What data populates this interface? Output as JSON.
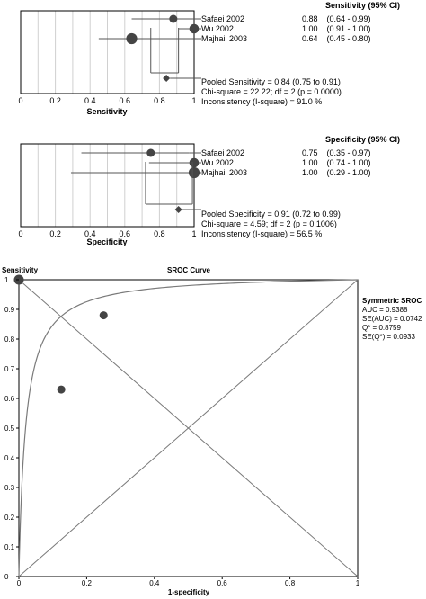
{
  "chart_data": [
    {
      "type": "forest",
      "header": "Sensitivity (95% CI)",
      "xlabel": "Sensitivity",
      "xlim": [
        0,
        1
      ],
      "x_ticks": [
        "0",
        "0.2",
        "0.4",
        "0.6",
        "0.8",
        "1"
      ],
      "studies": [
        {
          "name": "Safaei  2002",
          "est": 0.88,
          "lo": 0.64,
          "hi": 0.99,
          "ci_text": "0.88    (0.64 - 0.99)"
        },
        {
          "name": "Wu  2002",
          "est": 1.0,
          "lo": 0.91,
          "hi": 1.0,
          "ci_text": "1.00    (0.91 - 1.00)"
        },
        {
          "name": "Majhail  2003",
          "est": 0.64,
          "lo": 0.45,
          "hi": 0.8,
          "ci_text": "0.64    (0.45 - 0.80)"
        }
      ],
      "pooled": {
        "est": 0.84,
        "lo": 0.75,
        "hi": 0.91
      },
      "stats": [
        "Pooled Sensitivity = 0.84 (0.75 to 0.91)",
        "Chi-square = 22.22; df =  2 (p = 0.0000)",
        "Inconsistency (I-square) = 91.0 %"
      ]
    },
    {
      "type": "forest",
      "header": "Specificity (95% CI)",
      "xlabel": "Specificity",
      "xlim": [
        0,
        1
      ],
      "x_ticks": [
        "0",
        "0.2",
        "0.4",
        "0.6",
        "0.8",
        "1"
      ],
      "studies": [
        {
          "name": "Safaei  2002",
          "est": 0.75,
          "lo": 0.35,
          "hi": 0.97,
          "ci_text": "0.75    (0.35 - 0.97)"
        },
        {
          "name": "Wu  2002",
          "est": 1.0,
          "lo": 0.74,
          "hi": 1.0,
          "ci_text": "1.00    (0.74 - 1.00)"
        },
        {
          "name": "Majhail  2003",
          "est": 1.0,
          "lo": 0.29,
          "hi": 1.0,
          "ci_text": "1.00    (0.29 - 1.00)"
        }
      ],
      "pooled": {
        "est": 0.91,
        "lo": 0.72,
        "hi": 0.99
      },
      "stats": [
        "Pooled Specificity = 0.91 (0.72 to 0.99)",
        "Chi-square = 4.59; df =  2 (p = 0.1006)",
        "Inconsistency (I-square) = 56.5 %"
      ]
    },
    {
      "type": "scatter",
      "title": "SROC Curve",
      "xlabel": "1-specificity",
      "ylabel": "Sensitivity",
      "xlim": [
        0,
        1
      ],
      "ylim": [
        0,
        1
      ],
      "x_ticks": [
        "0",
        "0.2",
        "0.4",
        "0.6",
        "0.8",
        "1"
      ],
      "y_ticks": [
        "0",
        "0.1",
        "0.2",
        "0.3",
        "0.4",
        "0.5",
        "0.6",
        "0.7",
        "0.8",
        "0.9",
        "1"
      ],
      "points": [
        {
          "x": 0.0,
          "y": 1.0
        },
        {
          "x": 0.25,
          "y": 0.88
        },
        {
          "x": 0.125,
          "y": 0.63
        }
      ],
      "summary_title": "Symmetric SROC",
      "summary": [
        "AUC = 0.9388",
        "SE(AUC) = 0.0742",
        "Q* = 0.8759",
        "SE(Q*) = 0.0933"
      ]
    }
  ],
  "colors": {
    "axis": "#000000",
    "grid": "#d0d0d0",
    "line": "#555555",
    "point": "#444444",
    "curve": "#7a7a7a"
  }
}
